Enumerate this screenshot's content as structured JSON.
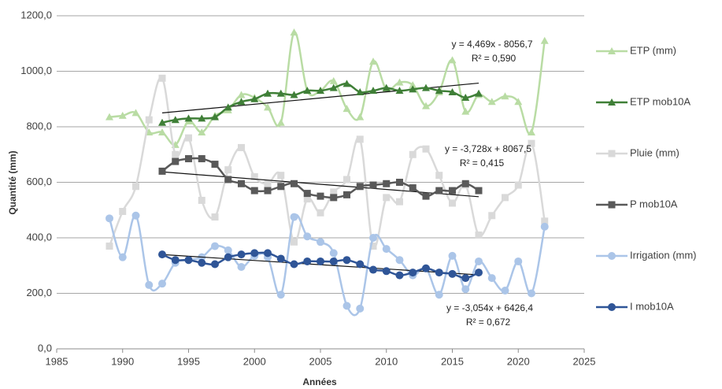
{
  "chart_data": {
    "type": "line",
    "xlabel": "Années",
    "ylabel": "Quantité  (mm)",
    "xlim": [
      1985,
      2025
    ],
    "xticks": [
      1985,
      1990,
      1995,
      2000,
      2005,
      2010,
      2015,
      2020,
      2025
    ],
    "ylim": [
      0,
      1200
    ],
    "yticks": [
      {
        "value": 0,
        "label": "0,0"
      },
      {
        "value": 200,
        "label": "200,0"
      },
      {
        "value": 400,
        "label": "400,0"
      },
      {
        "value": 600,
        "label": "600,0"
      },
      {
        "value": 800,
        "label": "800,0"
      },
      {
        "value": 1000,
        "label": "1000,0"
      },
      {
        "value": 1200,
        "label": "1200,0"
      }
    ],
    "grid": true,
    "legend": "right",
    "smooth": true,
    "series": [
      {
        "name": "ETP (mm)",
        "color": "#b9dca4",
        "marker": "triangle",
        "x": [
          1989,
          1990,
          1991,
          1992,
          1993,
          1994,
          1995,
          1996,
          1997,
          1998,
          1999,
          2000,
          2001,
          2002,
          2003,
          2004,
          2005,
          2006,
          2007,
          2008,
          2009,
          2010,
          2011,
          2012,
          2013,
          2014,
          2015,
          2016,
          2017,
          2018,
          2019,
          2020,
          2021,
          2022
        ],
        "values": [
          835,
          840,
          850,
          780,
          780,
          735,
          820,
          780,
          840,
          860,
          915,
          905,
          870,
          815,
          1140,
          930,
          930,
          965,
          865,
          835,
          1035,
          935,
          960,
          950,
          875,
          925,
          1040,
          855,
          915,
          890,
          910,
          890,
          780,
          1110
        ]
      },
      {
        "name": "ETP mob10A",
        "color": "#3f7f37",
        "marker": "triangle",
        "x": [
          1993,
          1994,
          1995,
          1996,
          1997,
          1998,
          1999,
          2000,
          2001,
          2002,
          2003,
          2004,
          2005,
          2006,
          2007,
          2008,
          2009,
          2010,
          2011,
          2012,
          2013,
          2014,
          2015,
          2016,
          2017
        ],
        "values": [
          815,
          825,
          830,
          830,
          835,
          870,
          890,
          900,
          920,
          920,
          915,
          930,
          930,
          940,
          955,
          925,
          930,
          940,
          930,
          935,
          940,
          930,
          925,
          905,
          920
        ]
      },
      {
        "name": "Pluie (mm)",
        "color": "#d9d9d9",
        "marker": "square",
        "x": [
          1989,
          1990,
          1991,
          1992,
          1993,
          1994,
          1995,
          1996,
          1997,
          1998,
          1999,
          2000,
          2001,
          2002,
          2003,
          2004,
          2005,
          2006,
          2007,
          2008,
          2009,
          2010,
          2011,
          2012,
          2013,
          2014,
          2015,
          2016,
          2017,
          2018,
          2019,
          2020,
          2021,
          2022
        ],
        "values": [
          370,
          495,
          585,
          825,
          975,
          700,
          760,
          535,
          475,
          645,
          725,
          620,
          595,
          625,
          385,
          540,
          490,
          565,
          610,
          755,
          370,
          545,
          530,
          700,
          720,
          625,
          525,
          590,
          410,
          480,
          545,
          590,
          740,
          460
        ]
      },
      {
        "name": "P mob10A",
        "color": "#595959",
        "marker": "square",
        "x": [
          1993,
          1994,
          1995,
          1996,
          1997,
          1998,
          1999,
          2000,
          2001,
          2002,
          2003,
          2004,
          2005,
          2006,
          2007,
          2008,
          2009,
          2010,
          2011,
          2012,
          2013,
          2014,
          2015,
          2016,
          2017
        ],
        "values": [
          640,
          675,
          685,
          685,
          665,
          610,
          595,
          570,
          570,
          585,
          595,
          560,
          550,
          545,
          555,
          585,
          590,
          595,
          600,
          580,
          550,
          570,
          570,
          595,
          570
        ]
      },
      {
        "name": "Irrigation (mm)",
        "color": "#abc5e8",
        "marker": "circle",
        "x": [
          1989,
          1990,
          1991,
          1992,
          1993,
          1994,
          1995,
          1996,
          1997,
          1998,
          1999,
          2000,
          2001,
          2002,
          2003,
          2004,
          2005,
          2006,
          2007,
          2008,
          2009,
          2010,
          2011,
          2012,
          2013,
          2014,
          2015,
          2016,
          2017,
          2018,
          2019,
          2020,
          2021,
          2022
        ],
        "values": [
          470,
          330,
          480,
          230,
          235,
          310,
          320,
          330,
          370,
          355,
          295,
          335,
          330,
          195,
          475,
          405,
          385,
          345,
          155,
          145,
          400,
          360,
          320,
          265,
          290,
          195,
          335,
          215,
          315,
          255,
          210,
          315,
          200,
          440
        ]
      },
      {
        "name": "I mob10A",
        "color": "#2f5597",
        "marker": "circle",
        "x": [
          1993,
          1994,
          1995,
          1996,
          1997,
          1998,
          1999,
          2000,
          2001,
          2002,
          2003,
          2004,
          2005,
          2006,
          2007,
          2008,
          2009,
          2010,
          2011,
          2012,
          2013,
          2014,
          2015,
          2016,
          2017
        ],
        "values": [
          340,
          320,
          320,
          310,
          305,
          330,
          340,
          345,
          345,
          325,
          305,
          315,
          315,
          315,
          320,
          305,
          285,
          280,
          265,
          275,
          290,
          275,
          270,
          255,
          275
        ]
      }
    ],
    "trendlines": [
      {
        "equation": "y = 4,469x - 8056,7",
        "r2": "R² = 0,590",
        "slope": 4.469,
        "intercept": -8056.7,
        "xrange": [
          1993,
          2017
        ]
      },
      {
        "equation": "y = -3,728x + 8067,5",
        "r2": "R² = 0,415",
        "slope": -3.728,
        "intercept": 8067.5,
        "xrange": [
          1993,
          2017
        ]
      },
      {
        "equation": "y = -3,054x + 6426,4",
        "r2": "R² = 0,672",
        "slope": -3.054,
        "intercept": 6426.4,
        "xrange": [
          1993,
          2017
        ]
      }
    ]
  }
}
